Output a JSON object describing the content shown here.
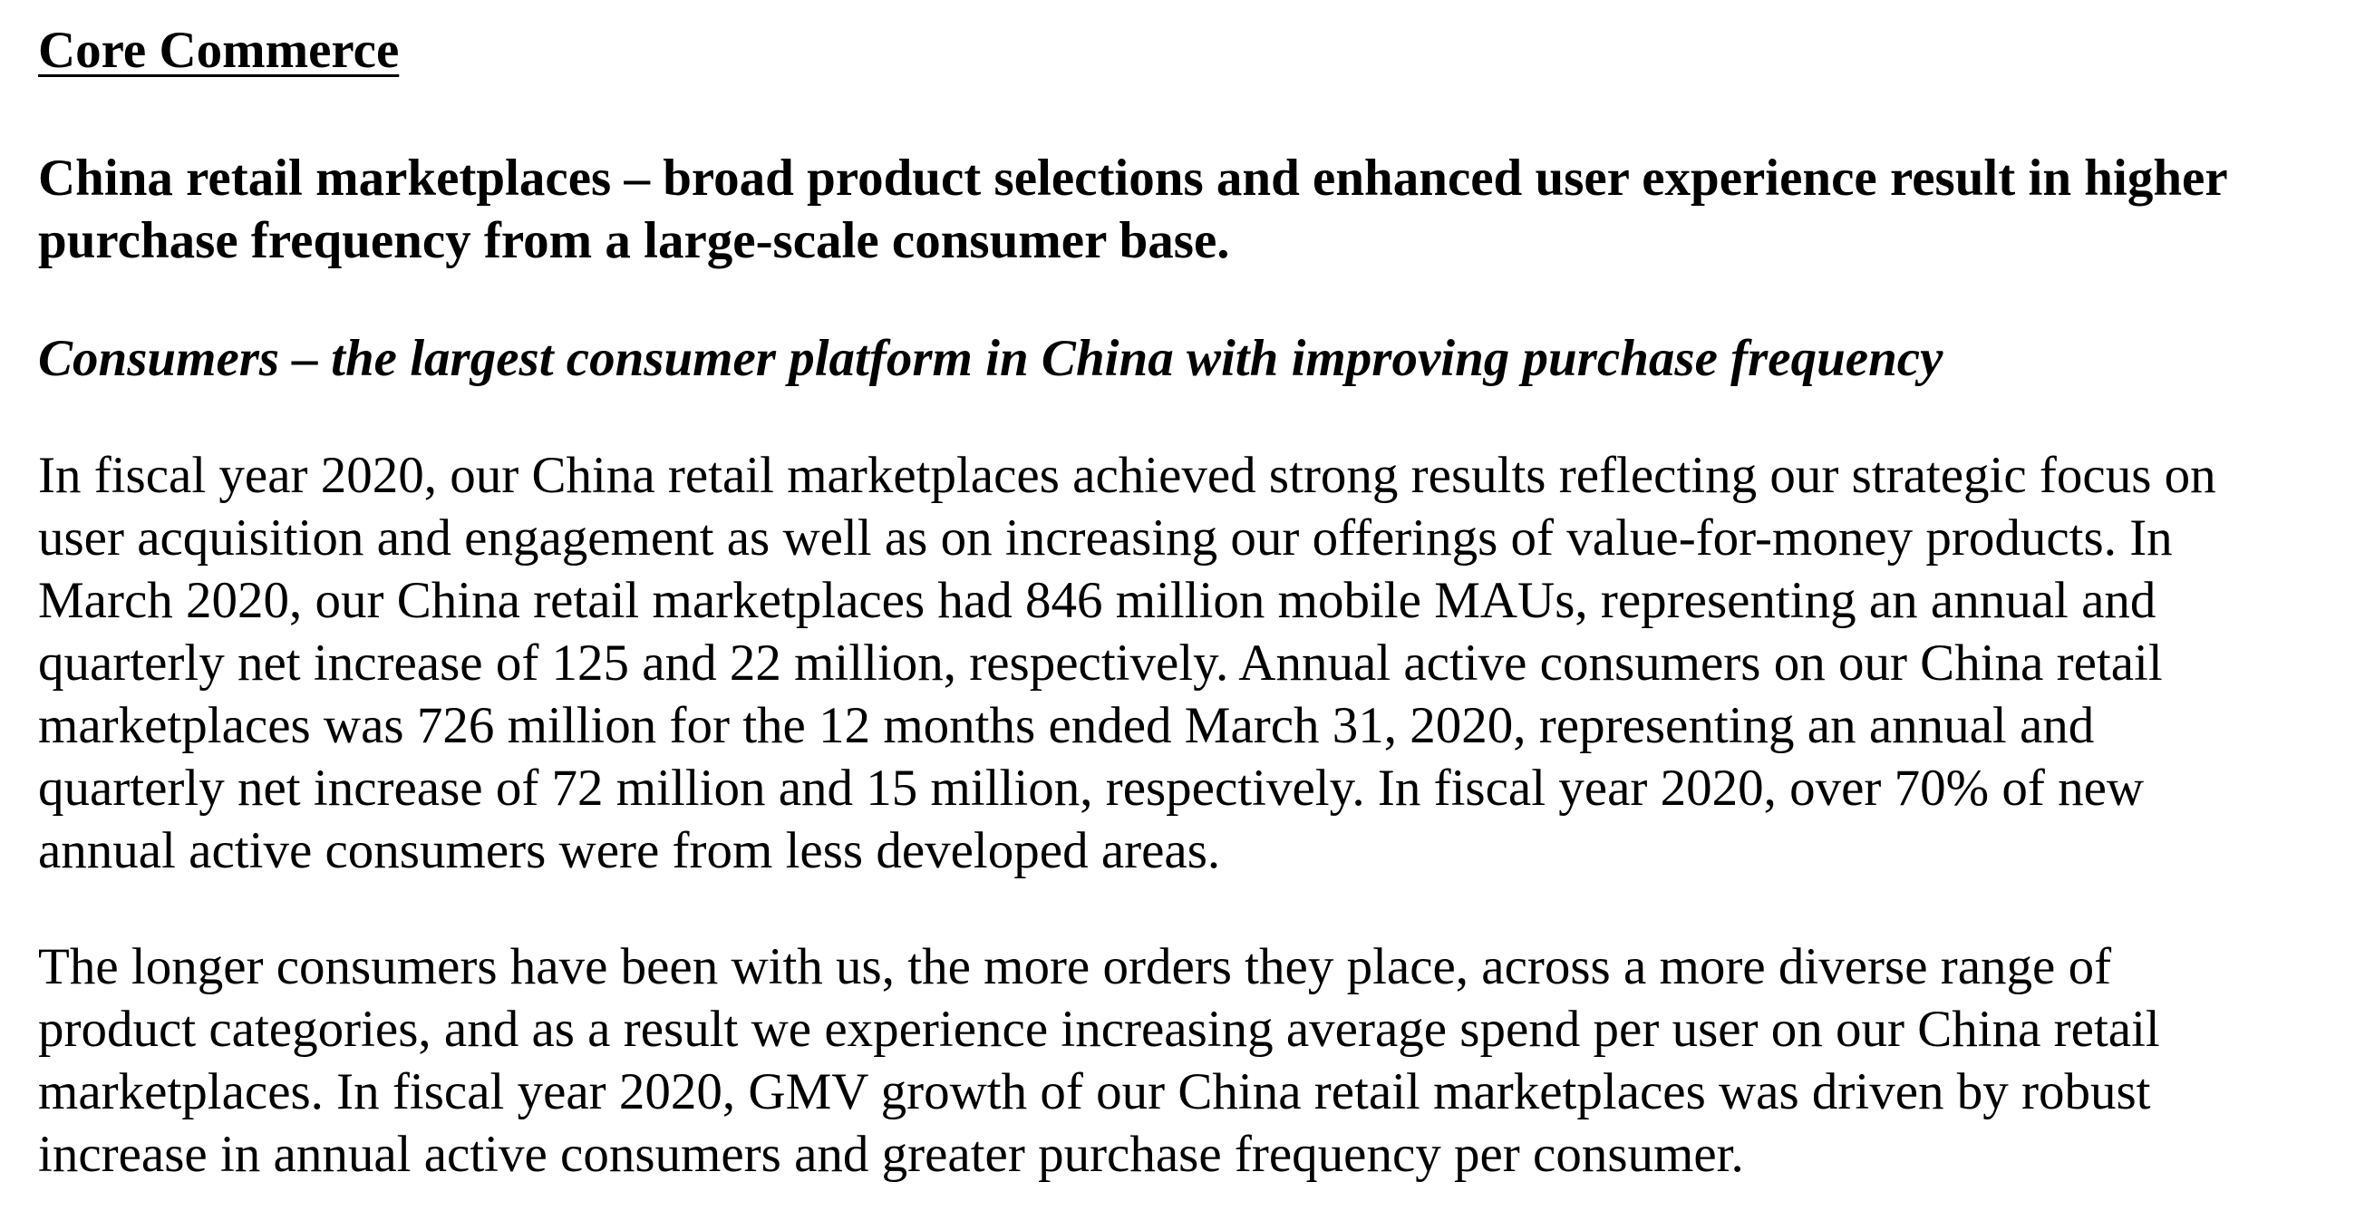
{
  "section_heading": "Core Commerce",
  "subheading": {
    "lines": [
      "China retail marketplaces – broad product selections and enhanced user experience result in higher",
      "purchase frequency from a large-scale consumer base."
    ]
  },
  "italic_heading": "Consumers – the largest consumer platform in China with improving purchase frequency",
  "paragraph_1": {
    "lines": [
      "In fiscal year 2020, our China retail marketplaces achieved strong results reflecting our strategic focus on",
      "user acquisition and engagement as well as on increasing our offerings of value-for-money products.  In",
      "March 2020, our China retail marketplaces had 846 million mobile MAUs, representing an annual and",
      "quarterly net increase of 125 and 22 million, respectively.  Annual active consumers on our China retail",
      "marketplaces was 726 million for the 12 months ended March 31, 2020, representing an annual and",
      "quarterly net increase of 72 million and 15 million, respectively.  In fiscal year 2020, over 70% of new",
      "annual active consumers were from less developed areas."
    ]
  },
  "paragraph_2": {
    "lines": [
      "The longer consumers have been with us, the more orders they place, across a more diverse range of",
      "product categories, and as a result we experience increasing average spend per user on our China retail",
      "marketplaces.  In fiscal year 2020, GMV growth of our China retail marketplaces was driven by robust",
      "increase in annual active consumers and greater purchase frequency per consumer."
    ]
  }
}
